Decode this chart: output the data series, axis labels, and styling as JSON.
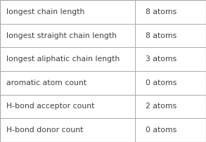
{
  "rows": [
    [
      "longest chain length",
      "8 atoms"
    ],
    [
      "longest straight chain length",
      "8 atoms"
    ],
    [
      "longest aliphatic chain length",
      "3 atoms"
    ],
    [
      "aromatic atom count",
      "0 atoms"
    ],
    [
      "H-bond acceptor count",
      "2 atoms"
    ],
    [
      "H-bond donor count",
      "0 atoms"
    ]
  ],
  "col_split": 0.655,
  "bg_color": "#ffffff",
  "border_color": "#aaaaaa",
  "text_color": "#404040",
  "font_size": 7.8,
  "figsize": [
    2.93,
    2.02
  ],
  "dpi": 100
}
